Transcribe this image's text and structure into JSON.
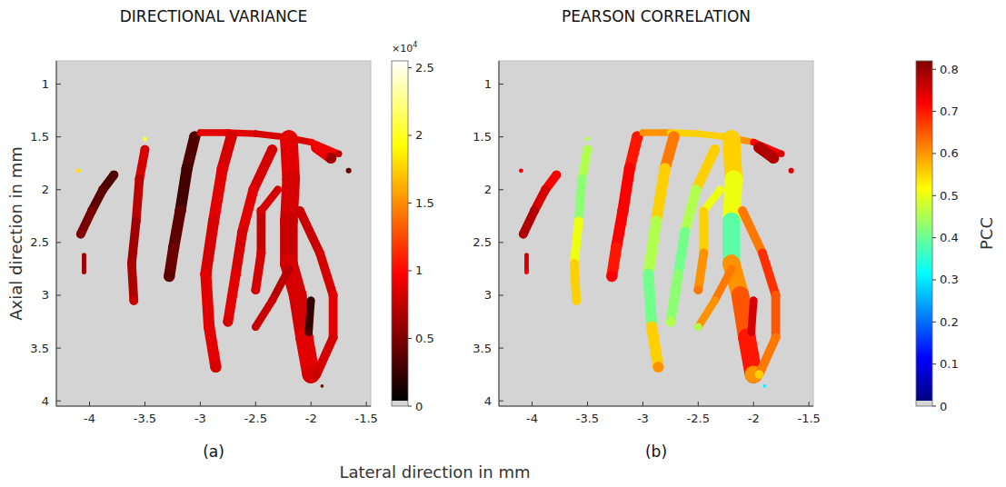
{
  "figure": {
    "xlabel": "Lateral direction in mm"
  },
  "chart_data": [
    {
      "type": "heatmap",
      "title": "DIRECTIONAL VARIANCE",
      "panel_label": "(a)",
      "ylabel": "Axial direction in mm",
      "color": "hot",
      "xlim": [
        -4.3,
        -1.46
      ],
      "xticks": [
        -4,
        -3.5,
        -3,
        -2.5,
        -2,
        -1.5
      ],
      "ylim": [
        4.05,
        0.78
      ],
      "yticks": [
        1,
        1.5,
        2,
        2.5,
        3,
        3.5,
        4
      ],
      "colorbar_range": [
        0,
        25500
      ],
      "colorbar_ticks": [
        0,
        {
          "value": 5000,
          "label": "0.5"
        },
        {
          "value": 10000,
          "label": "1"
        },
        {
          "value": 15000,
          "label": "1.5"
        },
        {
          "value": 20000,
          "label": "2"
        },
        {
          "value": 25000,
          "label": "2.5"
        }
      ],
      "colorbar_multiplier": "×10",
      "colorbar_exponent": "4",
      "vessels": [
        {
          "points": [
            [
              -3.78,
              1.86
            ],
            [
              -3.88,
              2.0
            ],
            [
              -3.98,
              2.2
            ],
            [
              -4.08,
              2.42
            ]
          ],
          "width": 0.08,
          "values": [
            3000,
            3500,
            4500,
            5000
          ]
        },
        {
          "points": [
            [
              -4.05,
              2.62
            ],
            [
              -4.05,
              2.78
            ]
          ],
          "width": 0.04,
          "values": [
            6000,
            6000
          ]
        },
        {
          "points": [
            [
              -3.5,
              1.62
            ],
            [
              -3.55,
              1.9
            ],
            [
              -3.58,
              2.3
            ],
            [
              -3.62,
              2.7
            ],
            [
              -3.6,
              3.05
            ]
          ],
          "width": 0.08,
          "values": [
            8000,
            7000,
            6000,
            6500,
            7500
          ]
        },
        {
          "points": [
            [
              -3.05,
              1.5
            ],
            [
              -3.12,
              1.8
            ],
            [
              -3.18,
              2.2
            ],
            [
              -3.24,
              2.55
            ],
            [
              -3.28,
              2.82
            ]
          ],
          "width": 0.1,
          "values": [
            3000,
            2500,
            3500,
            4000,
            3500
          ]
        },
        {
          "points": [
            [
              -3.0,
              1.46
            ],
            [
              -2.75,
              1.46
            ],
            [
              -2.5,
              1.47
            ],
            [
              -2.25,
              1.5
            ],
            [
              -2.0,
              1.55
            ],
            [
              -1.75,
              1.66
            ]
          ],
          "width": 0.06,
          "values": [
            8500,
            8500,
            8000,
            8000,
            9000,
            7000
          ]
        },
        {
          "points": [
            [
              -2.72,
              1.5
            ],
            [
              -2.8,
              1.8
            ],
            [
              -2.88,
              2.3
            ],
            [
              -2.95,
              2.8
            ],
            [
              -2.92,
              3.3
            ],
            [
              -2.86,
              3.68
            ]
          ],
          "width": 0.1,
          "values": [
            8000,
            8500,
            8000,
            8500,
            8500,
            8000
          ]
        },
        {
          "points": [
            [
              -2.2,
              1.52
            ],
            [
              -2.18,
              1.9
            ],
            [
              -2.2,
              2.3
            ],
            [
              -2.2,
              2.7
            ],
            [
              -2.12,
              3.0
            ],
            [
              -2.06,
              3.4
            ],
            [
              -2.0,
              3.75
            ]
          ],
          "width": 0.16,
          "values": [
            8500,
            8000,
            7500,
            8000,
            8000,
            8500,
            8000
          ]
        },
        {
          "points": [
            [
              -2.35,
              1.62
            ],
            [
              -2.52,
              2.0
            ],
            [
              -2.62,
              2.4
            ],
            [
              -2.68,
              2.8
            ],
            [
              -2.75,
              3.25
            ]
          ],
          "width": 0.09,
          "values": [
            8000,
            8500,
            8000,
            8500,
            8000
          ]
        },
        {
          "points": [
            [
              -2.45,
              2.2
            ],
            [
              -2.45,
              2.6
            ],
            [
              -2.5,
              2.95
            ]
          ],
          "width": 0.08,
          "values": [
            7500,
            8000,
            8000
          ]
        },
        {
          "points": [
            [
              -2.2,
              2.75
            ],
            [
              -2.35,
              3.05
            ],
            [
              -2.5,
              3.3
            ]
          ],
          "width": 0.07,
          "values": [
            7000,
            7500,
            7500
          ]
        },
        {
          "points": [
            [
              -2.1,
              2.2
            ],
            [
              -1.92,
              2.6
            ],
            [
              -1.8,
              3.0
            ],
            [
              -1.8,
              3.4
            ],
            [
              -1.95,
              3.75
            ]
          ],
          "width": 0.08,
          "values": [
            7500,
            8000,
            8500,
            8000,
            7500
          ]
        },
        {
          "points": [
            [
              -2.0,
              3.05
            ],
            [
              -2.02,
              3.35
            ]
          ],
          "width": 0.07,
          "values": [
            2000,
            3000
          ]
        },
        {
          "points": [
            [
              -1.95,
              1.6
            ],
            [
              -1.82,
              1.7
            ]
          ],
          "width": 0.1,
          "values": [
            9000,
            6000
          ]
        },
        {
          "points": [
            [
              -1.66,
              1.82
            ]
          ],
          "width": 0.05,
          "values": [
            4000
          ]
        },
        {
          "points": [
            [
              -3.5,
              1.52
            ]
          ],
          "width": 0.04,
          "values": [
            20000
          ]
        },
        {
          "points": [
            [
              -4.1,
              1.82
            ]
          ],
          "width": 0.04,
          "values": [
            18000
          ]
        },
        {
          "points": [
            [
              -1.9,
              3.86
            ]
          ],
          "width": 0.03,
          "values": [
            5000
          ]
        },
        {
          "points": [
            [
              -2.3,
              2.0
            ],
            [
              -2.45,
              2.2
            ]
          ],
          "width": 0.07,
          "values": [
            8000,
            8000
          ]
        }
      ]
    },
    {
      "type": "heatmap",
      "title": "PEARSON CORRELATION",
      "panel_label": "(b)",
      "color": "jet",
      "xlim": [
        -4.3,
        -1.46
      ],
      "xticks": [
        -4,
        -3.5,
        -3,
        -2.5,
        -2,
        -1.5
      ],
      "ylim": [
        4.05,
        0.78
      ],
      "yticks": [
        1,
        1.5,
        2,
        2.5,
        3,
        3.5,
        4
      ],
      "colorbar_range": [
        0,
        0.82
      ],
      "colorbar_ticks": [
        0,
        0.1,
        0.2,
        0.3,
        0.4,
        0.5,
        0.6,
        0.7,
        0.8
      ],
      "colorbar_label": "PCC",
      "vessels": [
        {
          "points": [
            [
              -3.78,
              1.86
            ],
            [
              -3.88,
              2.0
            ],
            [
              -3.98,
              2.2
            ],
            [
              -4.08,
              2.42
            ]
          ],
          "width": 0.08,
          "values": [
            0.72,
            0.75,
            0.78,
            0.78
          ]
        },
        {
          "points": [
            [
              -4.05,
              2.62
            ],
            [
              -4.05,
              2.78
            ]
          ],
          "width": 0.04,
          "values": [
            0.75,
            0.72
          ]
        },
        {
          "points": [
            [
              -3.5,
              1.62
            ],
            [
              -3.55,
              1.9
            ],
            [
              -3.58,
              2.3
            ],
            [
              -3.62,
              2.7
            ],
            [
              -3.6,
              3.05
            ]
          ],
          "width": 0.08,
          "values": [
            0.45,
            0.42,
            0.5,
            0.55,
            0.55
          ]
        },
        {
          "points": [
            [
              -3.05,
              1.5
            ],
            [
              -3.12,
              1.8
            ],
            [
              -3.18,
              2.2
            ],
            [
              -3.24,
              2.55
            ],
            [
              -3.28,
              2.82
            ]
          ],
          "width": 0.1,
          "values": [
            0.7,
            0.72,
            0.72,
            0.7,
            0.72
          ]
        },
        {
          "points": [
            [
              -3.0,
              1.46
            ],
            [
              -2.75,
              1.46
            ],
            [
              -2.5,
              1.47
            ],
            [
              -2.25,
              1.5
            ],
            [
              -2.0,
              1.55
            ],
            [
              -1.75,
              1.66
            ]
          ],
          "width": 0.06,
          "values": [
            0.6,
            0.55,
            0.55,
            0.6,
            0.72,
            0.75
          ]
        },
        {
          "points": [
            [
              -2.72,
              1.5
            ],
            [
              -2.8,
              1.8
            ],
            [
              -2.88,
              2.3
            ],
            [
              -2.95,
              2.8
            ],
            [
              -2.92,
              3.3
            ],
            [
              -2.86,
              3.68
            ]
          ],
          "width": 0.1,
          "values": [
            0.62,
            0.55,
            0.45,
            0.4,
            0.55,
            0.6
          ]
        },
        {
          "points": [
            [
              -2.2,
              1.52
            ],
            [
              -2.18,
              1.9
            ],
            [
              -2.2,
              2.3
            ],
            [
              -2.2,
              2.7
            ],
            [
              -2.12,
              3.0
            ],
            [
              -2.06,
              3.4
            ],
            [
              -2.0,
              3.75
            ]
          ],
          "width": 0.16,
          "values": [
            0.55,
            0.5,
            0.38,
            0.6,
            0.65,
            0.7,
            0.6
          ]
        },
        {
          "points": [
            [
              -2.35,
              1.62
            ],
            [
              -2.52,
              2.0
            ],
            [
              -2.62,
              2.4
            ],
            [
              -2.68,
              2.8
            ],
            [
              -2.75,
              3.25
            ]
          ],
          "width": 0.09,
          "values": [
            0.55,
            0.45,
            0.4,
            0.42,
            0.45
          ]
        },
        {
          "points": [
            [
              -2.45,
              2.2
            ],
            [
              -2.45,
              2.6
            ],
            [
              -2.5,
              2.95
            ]
          ],
          "width": 0.08,
          "values": [
            0.55,
            0.6,
            0.62
          ]
        },
        {
          "points": [
            [
              -2.2,
              2.75
            ],
            [
              -2.35,
              3.05
            ],
            [
              -2.5,
              3.3
            ]
          ],
          "width": 0.07,
          "values": [
            0.62,
            0.6,
            0.45
          ]
        },
        {
          "points": [
            [
              -2.1,
              2.2
            ],
            [
              -1.92,
              2.6
            ],
            [
              -1.8,
              3.0
            ],
            [
              -1.8,
              3.4
            ],
            [
              -1.95,
              3.75
            ]
          ],
          "width": 0.08,
          "values": [
            0.62,
            0.68,
            0.65,
            0.62,
            0.55
          ]
        },
        {
          "points": [
            [
              -2.0,
              3.05
            ],
            [
              -2.02,
              3.35
            ]
          ],
          "width": 0.07,
          "values": [
            0.75,
            0.75
          ]
        },
        {
          "points": [
            [
              -1.95,
              1.6
            ],
            [
              -1.82,
              1.7
            ]
          ],
          "width": 0.1,
          "values": [
            0.78,
            0.78
          ]
        },
        {
          "points": [
            [
              -1.66,
              1.82
            ]
          ],
          "width": 0.05,
          "values": [
            0.75
          ]
        },
        {
          "points": [
            [
              -3.5,
              1.52
            ]
          ],
          "width": 0.04,
          "values": [
            0.45
          ]
        },
        {
          "points": [
            [
              -4.1,
              1.82
            ]
          ],
          "width": 0.04,
          "values": [
            0.72
          ]
        },
        {
          "points": [
            [
              -1.9,
              3.86
            ]
          ],
          "width": 0.03,
          "values": [
            0.3
          ]
        },
        {
          "points": [
            [
              -2.3,
              2.0
            ],
            [
              -2.45,
              2.2
            ]
          ],
          "width": 0.07,
          "values": [
            0.5,
            0.55
          ]
        }
      ]
    }
  ]
}
